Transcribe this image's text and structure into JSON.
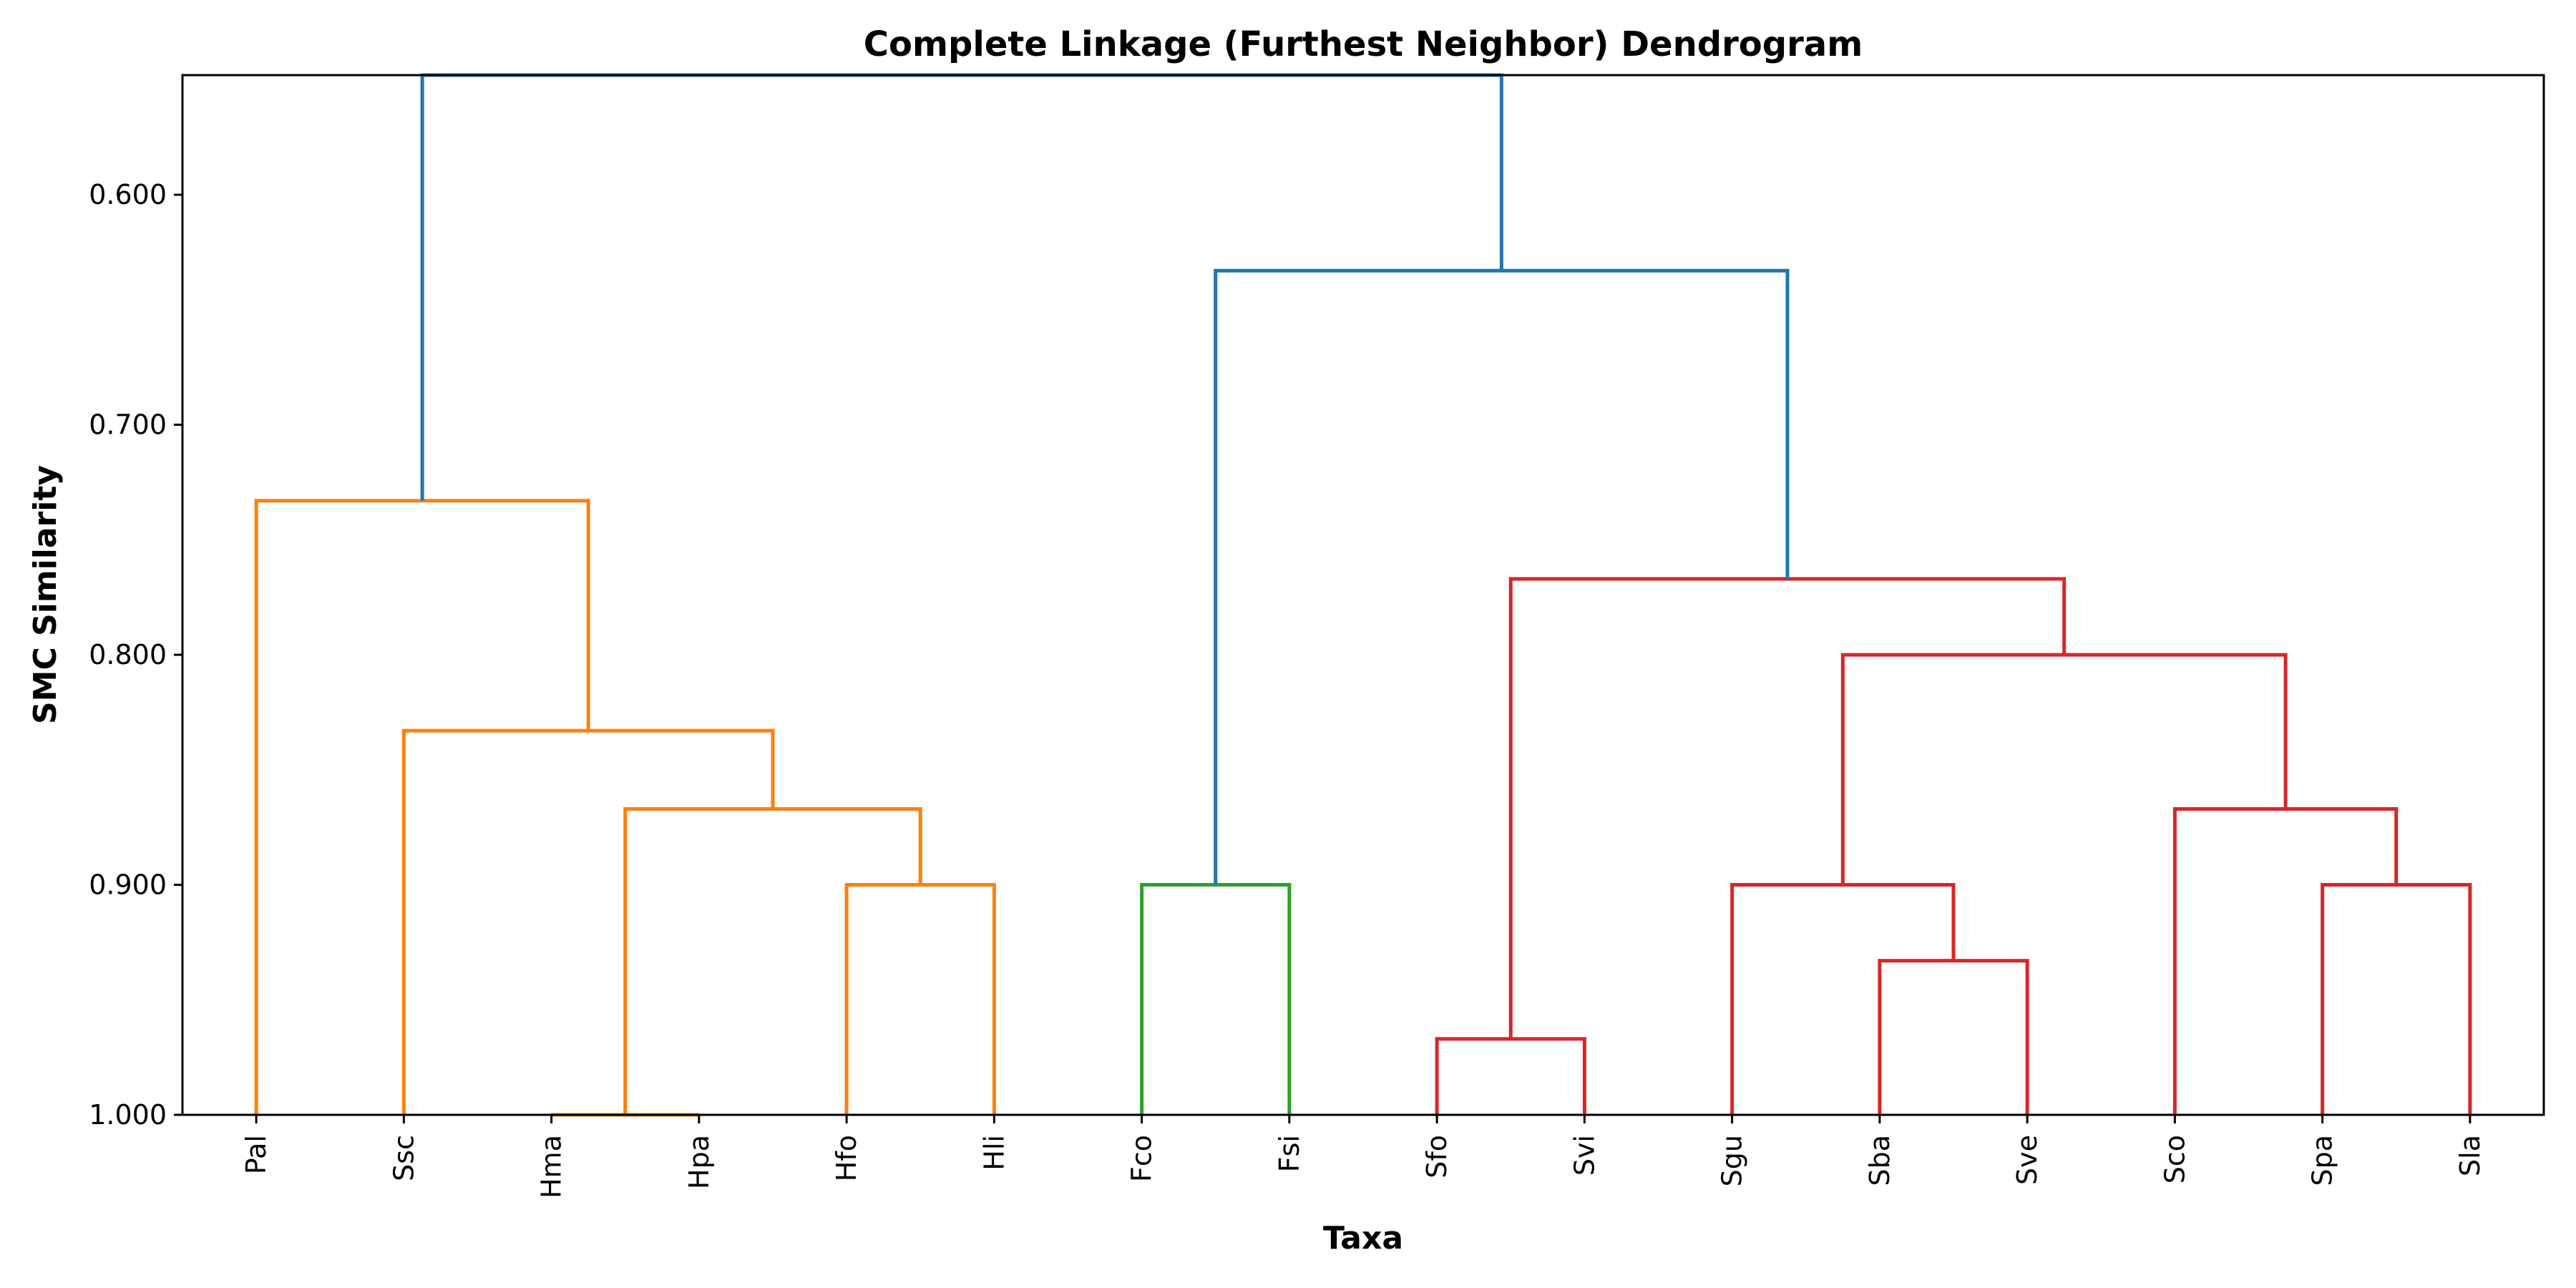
{
  "chart_data": {
    "type": "dendrogram",
    "title": "Complete Linkage (Furthest Neighbor) Dendrogram",
    "xlabel": "Taxa",
    "ylabel": "SMC Similarity",
    "y_inverted": true,
    "ylim": [
      1.0,
      0.548
    ],
    "yticks": [
      "0.600",
      "0.700",
      "0.800",
      "0.900",
      "1.000"
    ],
    "ytick_values": [
      0.6,
      0.7,
      0.8,
      0.9,
      1.0
    ],
    "grid": false,
    "colors": {
      "orange": "#ff7f0e",
      "green": "#2ca02c",
      "red": "#d62728",
      "blue": "#1f77b4",
      "axis": "#000000"
    },
    "leaves": [
      "Pal",
      "Ssc",
      "Hma",
      "Hpa",
      "Hfo",
      "Hli",
      "Fco",
      "Fsi",
      "Sfo",
      "Svi",
      "Sgu",
      "Sba",
      "Sve",
      "Sco",
      "Spa",
      "Sla"
    ],
    "merges": [
      {
        "left": 4,
        "right": 5,
        "height": 0.9,
        "color": "orange"
      },
      {
        "left": 6,
        "right": 7,
        "height": 0.9,
        "color": "green"
      },
      {
        "left": 8,
        "right": 9,
        "height": 0.967,
        "color": "red"
      },
      {
        "left": 11,
        "right": 12,
        "height": 0.933,
        "color": "red"
      },
      {
        "left": 14,
        "right": 15,
        "height": 0.9,
        "color": "red"
      },
      {
        "left": 2,
        "right": 3,
        "height": 1.0,
        "color": "orange"
      },
      {
        "left": 10,
        "right": "m3",
        "height": 0.9,
        "color": "red",
        "id": "m7"
      },
      {
        "left": 13,
        "right": "m4",
        "height": 0.867,
        "color": "red",
        "id": "m8"
      },
      {
        "left": "m5",
        "right": "m0",
        "height": 0.867,
        "color": "orange",
        "id": "m9"
      },
      {
        "left": 1,
        "right": "m9",
        "height": 0.833,
        "color": "orange",
        "id": "m10"
      },
      {
        "left": "m7",
        "right": "m8",
        "height": 0.8,
        "color": "red",
        "id": "m11"
      },
      {
        "left": "m2",
        "right": "m11",
        "height": 0.767,
        "color": "red",
        "id": "m12"
      },
      {
        "left": 0,
        "right": "m10",
        "height": 0.733,
        "color": "orange",
        "id": "m13"
      },
      {
        "left": "m1",
        "right": "m12",
        "height": 0.633,
        "color": "blue",
        "id": "m14"
      },
      {
        "left": "m13",
        "right": "m14",
        "height": 0.548,
        "color": "blue",
        "id": "m15"
      }
    ]
  }
}
